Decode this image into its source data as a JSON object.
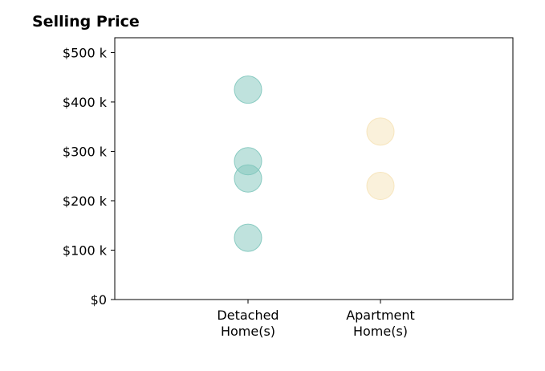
{
  "chart_data": {
    "type": "scatter",
    "title": "Selling Price",
    "xlabel": "",
    "ylabel": "",
    "categories": [
      {
        "line1": "Detached",
        "line2": "Home(s)"
      },
      {
        "line1": "Apartment",
        "line2": "Home(s)"
      }
    ],
    "ylim": [
      0,
      530000
    ],
    "yticks": [
      {
        "value": 0,
        "label": "$0"
      },
      {
        "value": 100000,
        "label": "$100 k"
      },
      {
        "value": 200000,
        "label": "$200 k"
      },
      {
        "value": 300000,
        "label": "$300 k"
      },
      {
        "value": 400000,
        "label": "$400 k"
      },
      {
        "value": 500000,
        "label": "$500 k"
      }
    ],
    "grid": false,
    "series": [
      {
        "category_index": 0,
        "color": "#7fc6bc",
        "values": [
          425000,
          280000,
          245000,
          125000
        ]
      },
      {
        "category_index": 1,
        "color": "#f6e3b8",
        "values": [
          340000,
          230000
        ]
      }
    ]
  }
}
